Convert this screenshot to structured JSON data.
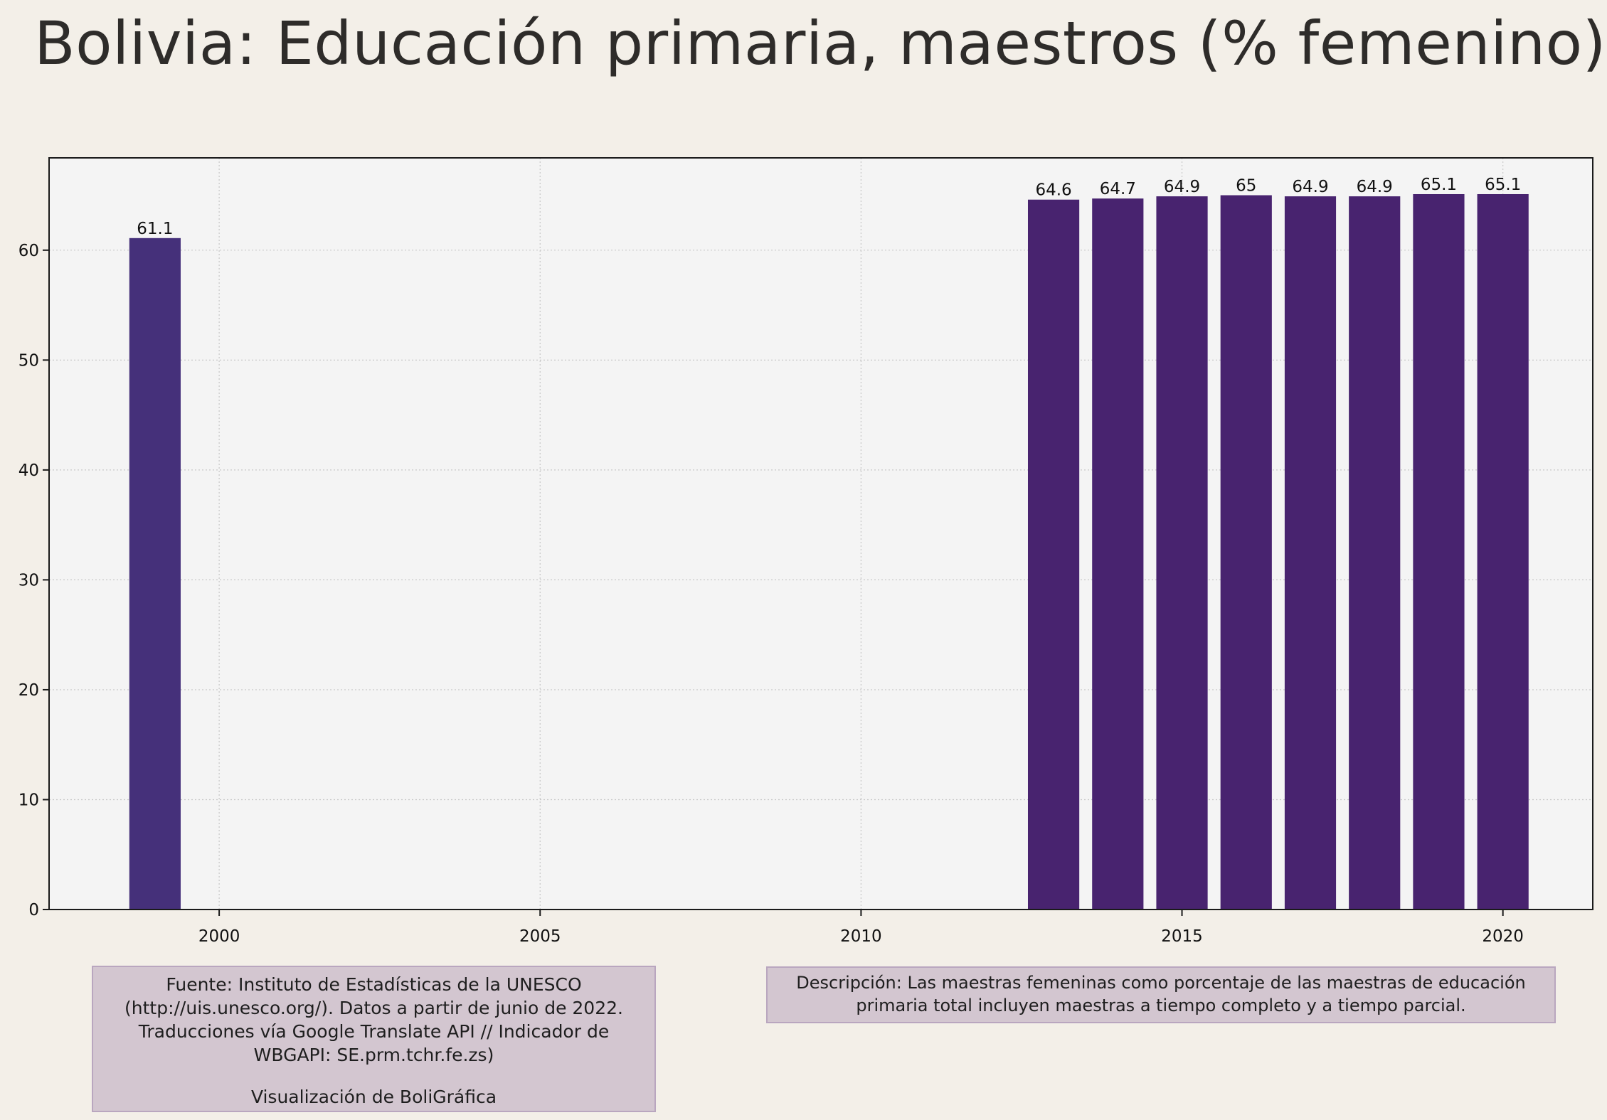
{
  "title": "Bolivia:  Educación primaria, maestros (% femenino)",
  "source": {
    "text": "Fuente: Instituto de Estadísticas de la UNESCO (http://uis.unesco.org/). Datos a partir de junio de 2022. Traducciones vía Google Translate API // Indicador de WBGAPI: SE.prm.tchr.fe.zs)",
    "credit": "Visualización de BoliGráfica"
  },
  "description": "Descripción: Las maestras femeninas como porcentaje de las maestras de educación primaria total incluyen maestras a tiempo completo y a tiempo parcial.",
  "colors": {
    "background": "#f3efe8",
    "plot_background": "#f4f4f4",
    "bar_1999": "#45307a",
    "bar": "#48236f",
    "grid": "#c8c8c8"
  },
  "chart_data": {
    "type": "bar",
    "title": "Bolivia:  Educación primaria, maestros (% femenino)",
    "xlabel": "",
    "ylabel": "",
    "x": [
      1999,
      2013,
      2014,
      2015,
      2016,
      2017,
      2018,
      2019,
      2020
    ],
    "values": [
      61.1,
      64.6,
      64.7,
      64.9,
      65,
      64.9,
      64.9,
      65.1,
      65.1
    ],
    "data_labels": [
      "61.1",
      "64.6",
      "64.7",
      "64.9",
      "65",
      "64.9",
      "64.9",
      "65.1",
      "65.1"
    ],
    "xlim": [
      1997.35,
      2021.4
    ],
    "ylim": [
      0,
      68.4
    ],
    "xticks": [
      2000,
      2005,
      2010,
      2015,
      2020
    ],
    "yticks": [
      0,
      10,
      20,
      30,
      40,
      50,
      60
    ],
    "grid": true,
    "legend": "none"
  }
}
